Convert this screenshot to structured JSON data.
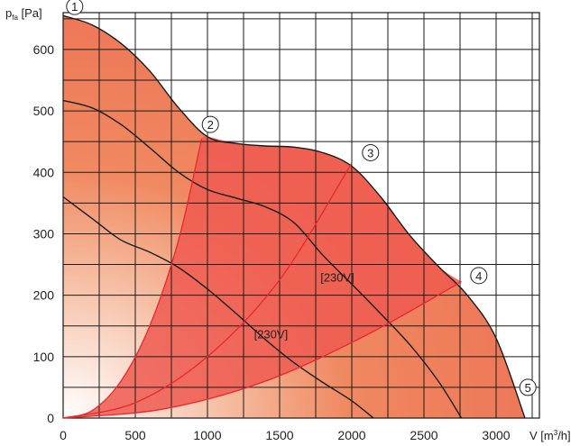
{
  "chart_data": {
    "type": "line",
    "title": "",
    "ylabel": "p",
    "ylabel_sub": "fa",
    "ylabel_unit": " [Pa]",
    "xlabel": "V [m",
    "xlabel_sup": "3",
    "xlabel_unit": "/h]",
    "xlim": [
      0,
      3300
    ],
    "ylim": [
      0,
      660
    ],
    "grid": true,
    "x_ticks": [
      0,
      500,
      1000,
      1500,
      2000,
      2500,
      3000
    ],
    "y_ticks": [
      0,
      100,
      200,
      300,
      400,
      500,
      600
    ],
    "series": [
      {
        "id": "curve-max",
        "points": [
          [
            0,
            655
          ],
          [
            200,
            640
          ],
          [
            400,
            610
          ],
          [
            600,
            565
          ],
          [
            800,
            505
          ],
          [
            1000,
            458
          ],
          [
            1200,
            447
          ],
          [
            1400,
            443
          ],
          [
            1600,
            441
          ],
          [
            1800,
            432
          ],
          [
            2000,
            410
          ],
          [
            2200,
            360
          ],
          [
            2400,
            298
          ],
          [
            2600,
            247
          ],
          [
            2800,
            200
          ],
          [
            3000,
            130
          ],
          [
            3200,
            0
          ]
        ]
      },
      {
        "id": "curve-mid",
        "points": [
          [
            0,
            517
          ],
          [
            200,
            505
          ],
          [
            400,
            478
          ],
          [
            600,
            440
          ],
          [
            800,
            400
          ],
          [
            1000,
            372
          ],
          [
            1200,
            358
          ],
          [
            1400,
            344
          ],
          [
            1600,
            318
          ],
          [
            1800,
            265
          ],
          [
            2000,
            218
          ],
          [
            2200,
            170
          ],
          [
            2400,
            120
          ],
          [
            2600,
            60
          ],
          [
            2760,
            0
          ]
        ]
      },
      {
        "id": "curve-low",
        "points": [
          [
            0,
            360
          ],
          [
            200,
            325
          ],
          [
            400,
            290
          ],
          [
            600,
            270
          ],
          [
            800,
            245
          ],
          [
            1000,
            210
          ],
          [
            1200,
            170
          ],
          [
            1400,
            128
          ],
          [
            1600,
            90
          ],
          [
            1800,
            58
          ],
          [
            2000,
            28
          ],
          [
            2150,
            0
          ]
        ]
      },
      {
        "id": "system-2",
        "points": [
          [
            0,
            0
          ],
          [
            200,
            12
          ],
          [
            400,
            60
          ],
          [
            600,
            150
          ],
          [
            800,
            290
          ],
          [
            960,
            455
          ]
        ]
      },
      {
        "id": "system-3",
        "points": [
          [
            0,
            0
          ],
          [
            500,
            25
          ],
          [
            1000,
            100
          ],
          [
            1500,
            225
          ],
          [
            2000,
            415
          ]
        ]
      },
      {
        "id": "system-4",
        "points": [
          [
            0,
            0
          ],
          [
            700,
            15
          ],
          [
            1400,
            60
          ],
          [
            2100,
            135
          ],
          [
            2760,
            222
          ]
        ]
      }
    ],
    "markers": [
      {
        "label": "1",
        "x": 80,
        "y": 670
      },
      {
        "label": "2",
        "x": 1020,
        "y": 478
      },
      {
        "label": "3",
        "x": 2130,
        "y": 432
      },
      {
        "label": "4",
        "x": 2880,
        "y": 232
      },
      {
        "label": "5",
        "x": 3220,
        "y": 50
      }
    ],
    "annotations": [
      {
        "text": "[230V]",
        "x": 1900,
        "y": 222
      },
      {
        "text": "[230V]",
        "x": 1440,
        "y": 130
      }
    ]
  },
  "colors": {
    "field_outer": "#f08860",
    "field_inner": "#ee5a50",
    "curve": "#1a1a1a",
    "system_line": "#e8282d",
    "grid": "#1a1a1a"
  }
}
